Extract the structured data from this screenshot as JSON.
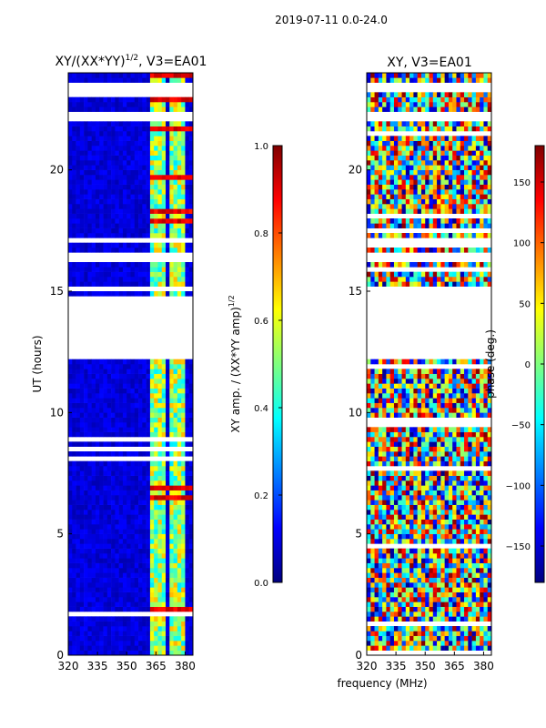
{
  "figure": {
    "suptitle": "2019-07-11 0.0-24.0",
    "xlabel": "frequency (MHz)"
  },
  "colors": {
    "jet": [
      "#00007f",
      "#0000ff",
      "#007fff",
      "#00ffff",
      "#7fff7f",
      "#ffff00",
      "#ff7f00",
      "#ff0000",
      "#7f0000"
    ],
    "background": "#ffffff",
    "axis": "#000000"
  },
  "chart_data": [
    {
      "type": "heatmap",
      "title_main": "XY/(XX*YY)",
      "title_exp": "1/2",
      "title_rest": ", V3=EA01",
      "ylabel": "UT (hours)",
      "xlim": [
        320,
        384
      ],
      "ylim": [
        0,
        24
      ],
      "xticks": [
        320,
        335,
        350,
        365,
        380
      ],
      "yticks": [
        0,
        5,
        10,
        15,
        20
      ],
      "colorbar": {
        "label": "XY amp. / (XX*YY amp)",
        "label_exp": "1/2",
        "range": [
          0.0,
          1.0
        ],
        "ticks": [
          "0.0",
          "0.2",
          "0.4",
          "0.6",
          "0.8",
          "1.0"
        ],
        "tick_values": [
          0.0,
          0.2,
          0.4,
          0.6,
          0.8,
          1.0
        ]
      },
      "gaps_hours": [
        [
          12.4,
          14.7
        ],
        [
          15.0,
          15.2
        ],
        [
          16.2,
          16.6
        ],
        [
          22.0,
          22.4
        ],
        [
          23.3,
          23.5
        ]
      ],
      "band_columns_mhz": [
        [
          362,
          366
        ],
        [
          367,
          370
        ],
        [
          372,
          375
        ],
        [
          377,
          380
        ]
      ]
    },
    {
      "type": "heatmap",
      "title": "XY, V3=EA01",
      "ylabel": "",
      "xlim": [
        320,
        384
      ],
      "ylim": [
        0,
        24
      ],
      "xticks": [
        320,
        335,
        350,
        365,
        380
      ],
      "yticks": [
        0,
        5,
        10,
        15,
        20
      ],
      "colorbar": {
        "label": "phase (deg.)",
        "range": [
          -180,
          180
        ],
        "ticks": [
          "150",
          "100",
          "50",
          "0",
          "−50",
          "−100",
          "−150"
        ],
        "tick_values": [
          150,
          100,
          50,
          0,
          -50,
          -100,
          -150
        ]
      },
      "gaps_hours": [
        [
          12.4,
          14.7
        ],
        [
          15.0,
          15.2
        ],
        [
          16.2,
          16.6
        ],
        [
          22.0,
          22.4
        ],
        [
          23.3,
          23.5
        ]
      ]
    }
  ]
}
